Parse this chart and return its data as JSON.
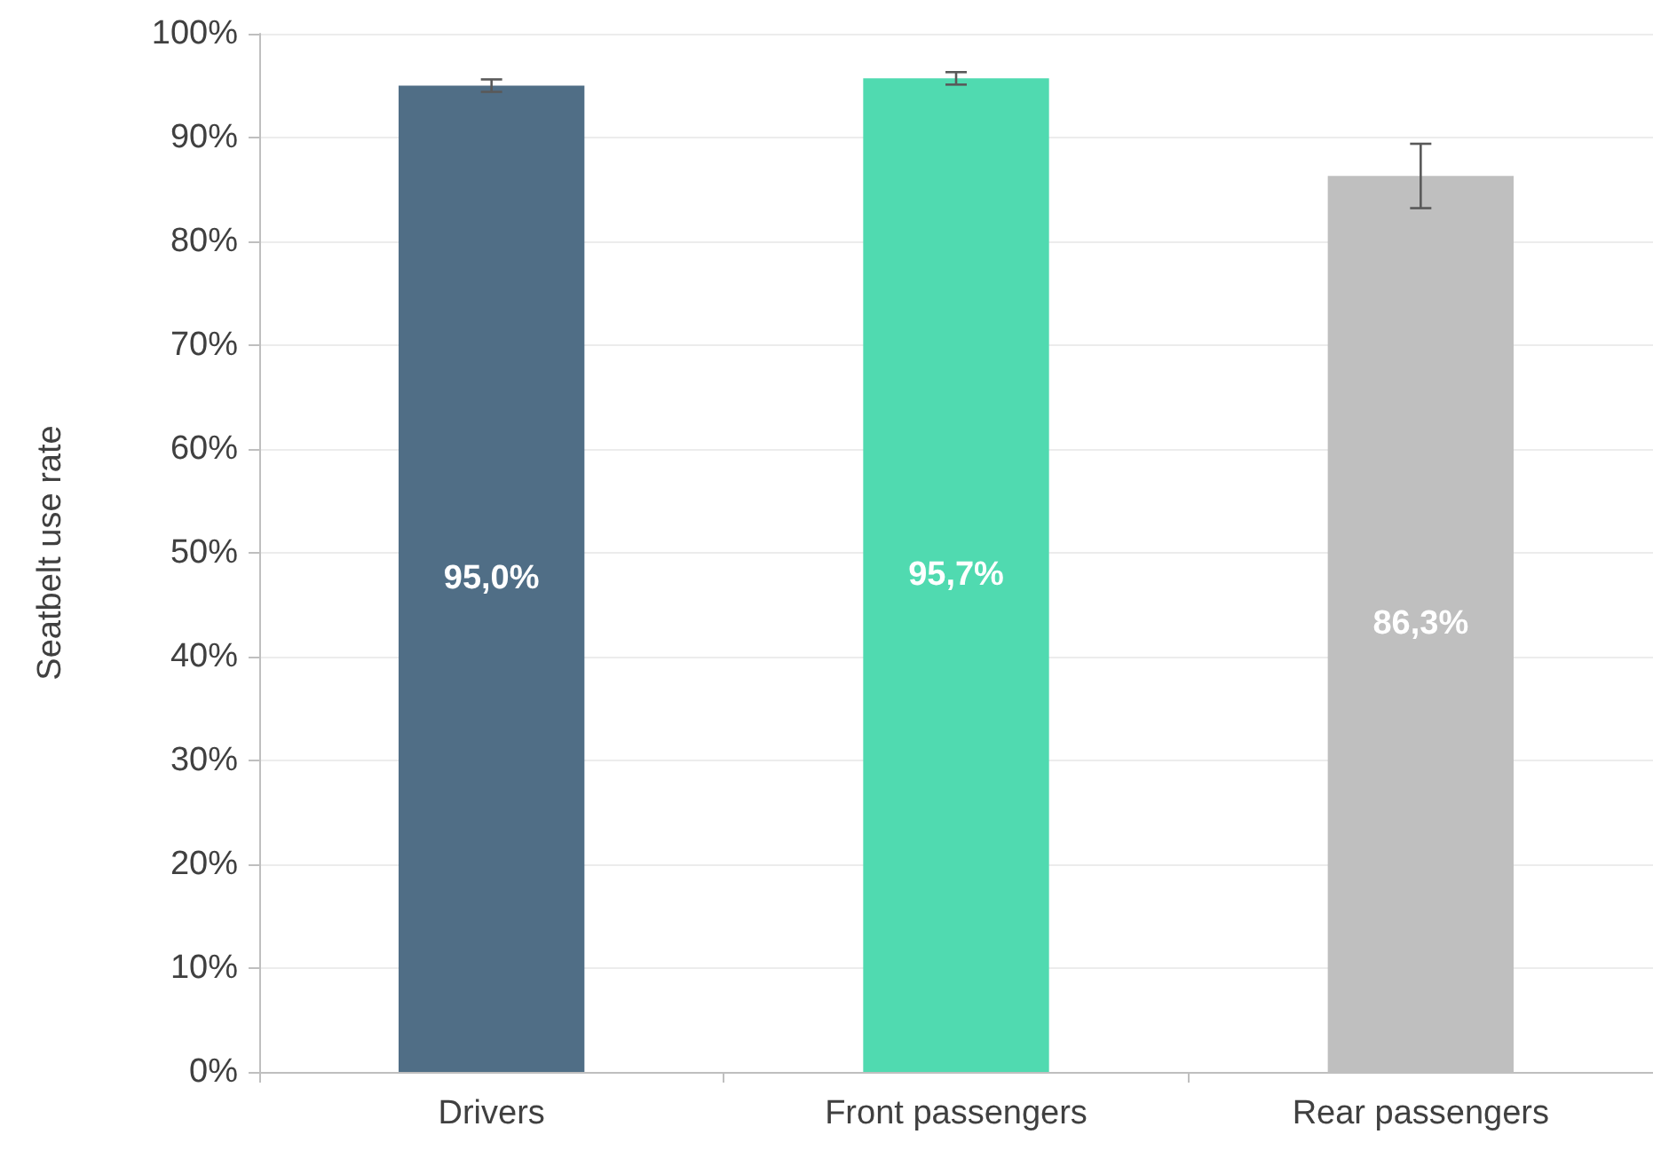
{
  "chart_data": {
    "type": "bar",
    "ylabel": "Seatbelt use rate",
    "categories": [
      "Drivers",
      "Front passengers",
      "Rear passengers"
    ],
    "values": [
      95.0,
      95.7,
      86.3
    ],
    "colors": [
      "#506e86",
      "#50dab0",
      "#bfbfbf"
    ],
    "value_labels": [
      "95,0%",
      "95,7%",
      "86,3%"
    ],
    "errors": [
      0.6,
      0.6,
      [
        83.2,
        89.4
      ]
    ],
    "ylim": [
      0,
      100
    ],
    "yticks": [
      {
        "value": 0,
        "label": "0%"
      },
      {
        "value": 10,
        "label": "10%"
      },
      {
        "value": 20,
        "label": "20%"
      },
      {
        "value": 30,
        "label": "30%"
      },
      {
        "value": 40,
        "label": "40%"
      },
      {
        "value": 50,
        "label": "50%"
      },
      {
        "value": 60,
        "label": "60%"
      },
      {
        "value": 70,
        "label": "70%"
      },
      {
        "value": 80,
        "label": "80%"
      },
      {
        "value": 90,
        "label": "90%"
      },
      {
        "value": 100,
        "label": "100%"
      }
    ],
    "grid": "y"
  }
}
